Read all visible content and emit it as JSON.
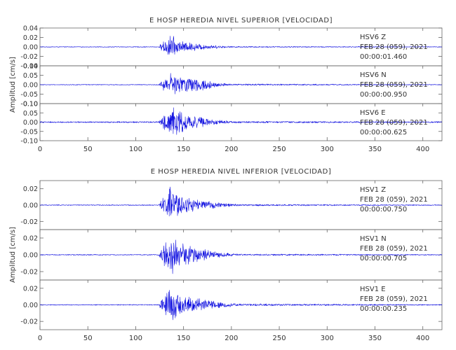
{
  "chart_data": [
    {
      "type": "line",
      "title": "E HOSP HEREDIA NIVEL SUPERIOR [VELOCIDAD]",
      "ylabel": "Amplitud [cm/s]",
      "xlim": [
        0,
        420
      ],
      "x_ticks": [
        "0",
        "50",
        "100",
        "150",
        "200",
        "250",
        "300",
        "350",
        "400"
      ],
      "trace_color": "#1010e0",
      "panels": [
        {
          "channel": "HSV6   Z",
          "date": "FEB 28 (059), 2021",
          "time": "00:00:01.460",
          "ylim": [
            -0.04,
            0.04
          ],
          "y_ticks": [
            "0.04",
            "0.02",
            "0.00",
            "-0.02",
            "-0.04"
          ],
          "noise_amp": 0.0008,
          "envelope": [
            [
              0,
              0.0008
            ],
            [
              124,
              0.0008
            ],
            [
              128,
              0.012
            ],
            [
              133,
              0.016
            ],
            [
              137,
              0.04
            ],
            [
              140,
              0.02
            ],
            [
              150,
              0.012
            ],
            [
              165,
              0.008
            ],
            [
              180,
              0.004
            ],
            [
              200,
              0.0015
            ],
            [
              420,
              0.0008
            ]
          ]
        },
        {
          "channel": "HSV6   N",
          "date": "FEB 28 (059), 2021",
          "time": "00:00:00.950",
          "ylim": [
            -0.1,
            0.1
          ],
          "y_ticks": [
            "0.10",
            "0.05",
            "0.00",
            "-0.05",
            "-0.10"
          ],
          "noise_amp": 0.002,
          "envelope": [
            [
              0,
              0.002
            ],
            [
              124,
              0.002
            ],
            [
              128,
              0.03
            ],
            [
              135,
              0.05
            ],
            [
              138,
              0.085
            ],
            [
              142,
              0.06
            ],
            [
              155,
              0.04
            ],
            [
              168,
              0.045
            ],
            [
              180,
              0.015
            ],
            [
              200,
              0.005
            ],
            [
              420,
              0.002
            ]
          ]
        },
        {
          "channel": "HSV6   E",
          "date": "FEB 28 (059), 2021",
          "time": "00:00:00.625",
          "ylim": [
            -0.1,
            0.1
          ],
          "y_ticks": [
            "0.10",
            "0.05",
            "0.00",
            "-0.05",
            "-0.10"
          ],
          "noise_amp": 0.004,
          "envelope": [
            [
              0,
              0.004
            ],
            [
              124,
              0.004
            ],
            [
              128,
              0.035
            ],
            [
              134,
              0.06
            ],
            [
              138,
              0.1
            ],
            [
              142,
              0.08
            ],
            [
              152,
              0.05
            ],
            [
              165,
              0.04
            ],
            [
              180,
              0.015
            ],
            [
              200,
              0.006
            ],
            [
              420,
              0.004
            ]
          ]
        }
      ]
    },
    {
      "type": "line",
      "title": "E HOSP HEREDIA NIVEL INFERIOR [VELOCIDAD]",
      "ylabel": "Amplitud [cm/s]",
      "xlim": [
        0,
        420
      ],
      "x_ticks": [
        "0",
        "50",
        "100",
        "150",
        "200",
        "250",
        "300",
        "350",
        "400"
      ],
      "trace_color": "#1010e0",
      "panels": [
        {
          "channel": "HSV1   Z",
          "date": "FEB 28 (059), 2021",
          "time": "00:00:00.750",
          "ylim": [
            -0.03,
            0.03
          ],
          "y_ticks": [
            "0.02",
            "0.00",
            "-0.02"
          ],
          "noise_amp": 0.0006,
          "envelope": [
            [
              0,
              0.0006
            ],
            [
              124,
              0.0006
            ],
            [
              128,
              0.01
            ],
            [
              133,
              0.015
            ],
            [
              137,
              0.03
            ],
            [
              141,
              0.018
            ],
            [
              155,
              0.01
            ],
            [
              170,
              0.006
            ],
            [
              190,
              0.003
            ],
            [
              210,
              0.0012
            ],
            [
              420,
              0.0006
            ]
          ]
        },
        {
          "channel": "HSV1   N",
          "date": "FEB 28 (059), 2021",
          "time": "00:00:00.705",
          "ylim": [
            -0.03,
            0.03
          ],
          "y_ticks": [
            "0.02",
            "0.00",
            "-0.02"
          ],
          "noise_amp": 0.0006,
          "envelope": [
            [
              0,
              0.0006
            ],
            [
              124,
              0.0006
            ],
            [
              128,
              0.012
            ],
            [
              133,
              0.02
            ],
            [
              137,
              0.029
            ],
            [
              142,
              0.02
            ],
            [
              155,
              0.012
            ],
            [
              170,
              0.007
            ],
            [
              190,
              0.003
            ],
            [
              210,
              0.0012
            ],
            [
              420,
              0.0006
            ]
          ]
        },
        {
          "channel": "HSV1   E",
          "date": "FEB 28 (059), 2021",
          "time": "00:00:00.235",
          "ylim": [
            -0.03,
            0.03
          ],
          "y_ticks": [
            "0.02",
            "0.00",
            "-0.02"
          ],
          "noise_amp": 0.0006,
          "envelope": [
            [
              0,
              0.0006
            ],
            [
              124,
              0.0006
            ],
            [
              128,
              0.012
            ],
            [
              133,
              0.02
            ],
            [
              137,
              0.025
            ],
            [
              142,
              0.018
            ],
            [
              155,
              0.012
            ],
            [
              170,
              0.007
            ],
            [
              190,
              0.004
            ],
            [
              210,
              0.0015
            ],
            [
              420,
              0.0006
            ]
          ]
        }
      ]
    }
  ]
}
